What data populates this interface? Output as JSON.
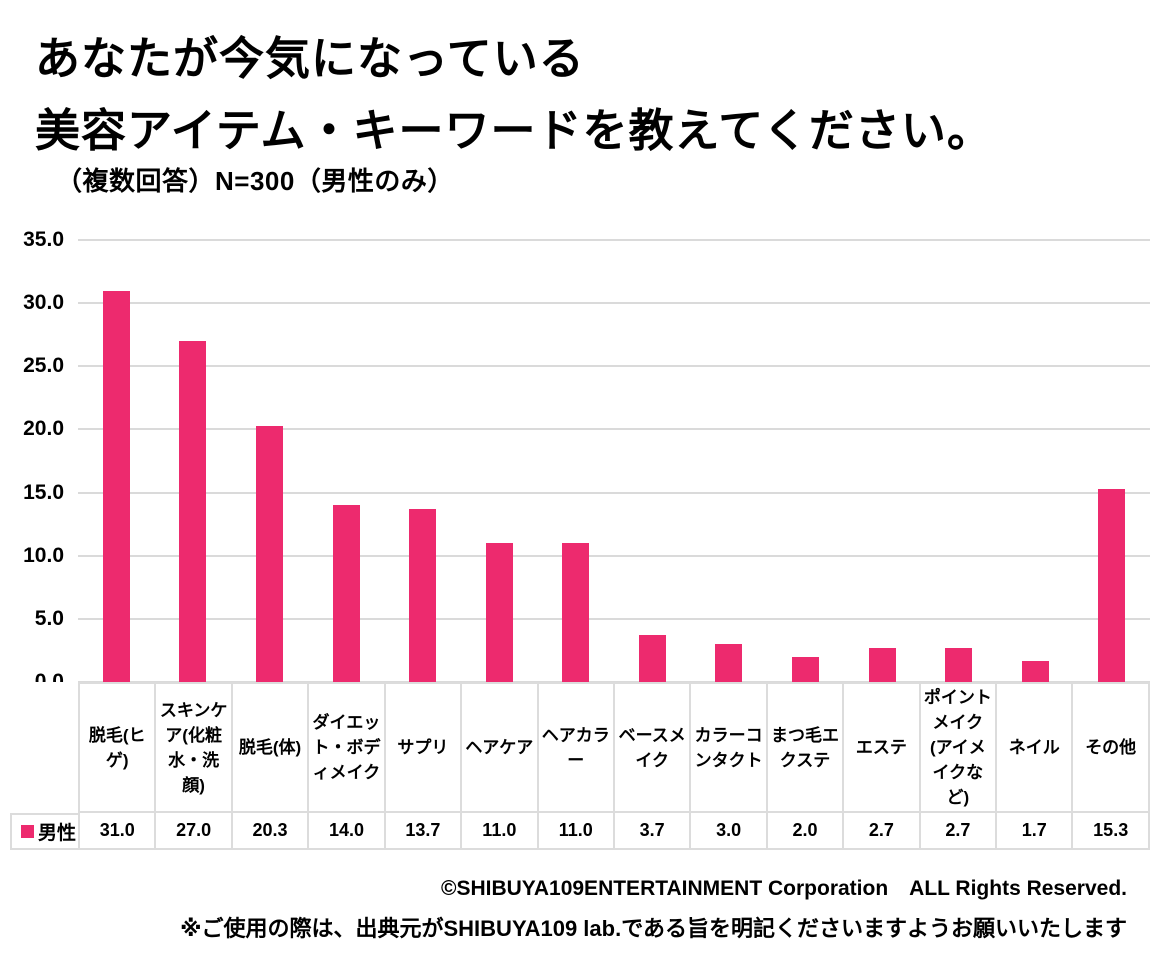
{
  "title": {
    "line1": "あなたが今気になっている",
    "line2": "美容アイテム・キーワードを教えてください。"
  },
  "subtitle": "（複数回答）N=300（男性のみ）",
  "legend": {
    "label": "男性",
    "marker_color": "#ED2A6E",
    "position": "bottom-left"
  },
  "chart_data": {
    "type": "bar",
    "title": "あなたが今気になっている美容アイテム・キーワードを教えてください。（複数回答）N=300（男性のみ）",
    "categories": [
      "脱毛(ヒゲ)",
      "スキンケア(化粧水・洗顔)",
      "脱毛(体)",
      "ダイエット・ボディメイク",
      "サプリ",
      "ヘアケア",
      "ヘアカラー",
      "ベースメイク",
      "カラーコンタクト",
      "まつ毛エクステ",
      "エステ",
      "ポイントメイク(アイメイクなど)",
      "ネイル",
      "その他"
    ],
    "series": [
      {
        "name": "男性",
        "values": [
          31.0,
          27.0,
          20.3,
          14.0,
          13.7,
          11.0,
          11.0,
          3.7,
          3.0,
          2.0,
          2.7,
          2.7,
          1.7,
          15.3
        ]
      }
    ],
    "xlabel": "",
    "ylabel": "",
    "ylim": [
      0,
      35
    ],
    "ytick_step": 5,
    "grid": true,
    "legend_position": "bottom table row",
    "bar_color": "#ED2A6E",
    "gridline_color": "#DADADA"
  },
  "footer": {
    "line1": "©SHIBUYA109ENTERTAINMENT Corporation　ALL Rights Reserved.",
    "line2": "※ご使用の際は、出典元がSHIBUYA109 lab.である旨を明記くださいますようお願いいたします"
  }
}
